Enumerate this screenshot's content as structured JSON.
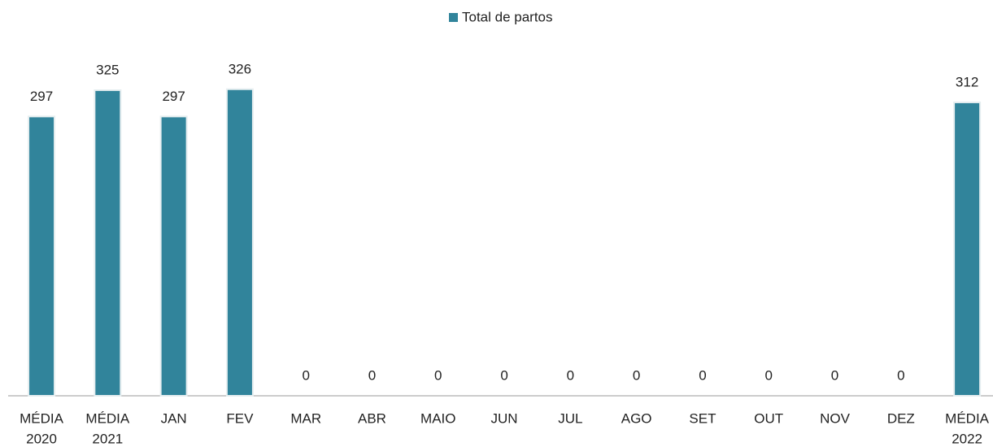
{
  "chart_data": {
    "type": "bar",
    "categories": [
      [
        "MÉDIA",
        "2020"
      ],
      [
        "MÉDIA",
        "2021"
      ],
      [
        "JAN"
      ],
      [
        "FEV"
      ],
      [
        "MAR"
      ],
      [
        "ABR"
      ],
      [
        "MAIO"
      ],
      [
        "JUN"
      ],
      [
        "JUL"
      ],
      [
        "AGO"
      ],
      [
        "SET"
      ],
      [
        "OUT"
      ],
      [
        "NOV"
      ],
      [
        "DEZ"
      ],
      [
        "MÉDIA",
        "2022"
      ]
    ],
    "series": [
      {
        "name": "Total de partos",
        "color": "#31849b",
        "values": [
          297,
          325,
          297,
          326,
          0,
          0,
          0,
          0,
          0,
          0,
          0,
          0,
          0,
          0,
          312
        ]
      }
    ],
    "ylim": [
      0,
      350
    ],
    "legend": "top"
  }
}
